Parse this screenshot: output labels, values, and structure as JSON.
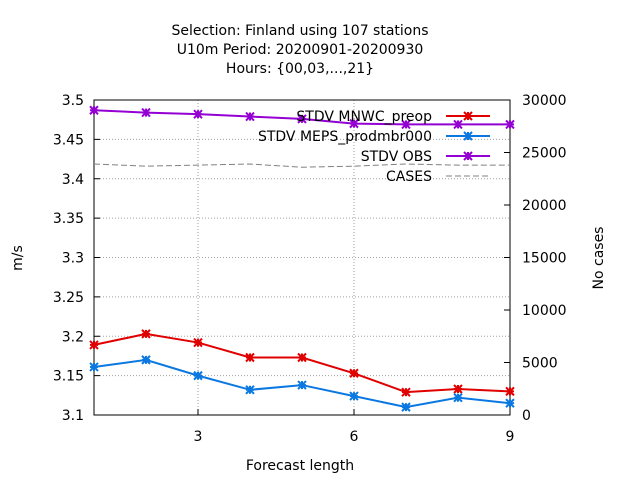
{
  "chart_data": {
    "type": "line",
    "title_lines": [
      "Selection: Finland using   107 stations",
      "U10m   Period: 20200901-20200930",
      "Hours: {00,03,...,21}"
    ],
    "xlabel": "Forecast length",
    "ylabel": "m/s",
    "y2label": "No cases",
    "x": [
      1,
      2,
      3,
      4,
      5,
      6,
      7,
      8,
      9
    ],
    "xlim": [
      1,
      9
    ],
    "xticks": [
      3,
      6,
      9
    ],
    "ylim": [
      3.1,
      3.5
    ],
    "yticks": [
      3.1,
      3.15,
      3.2,
      3.25,
      3.3,
      3.35,
      3.4,
      3.45,
      3.5
    ],
    "y2lim": [
      0,
      30000
    ],
    "y2ticks": [
      0,
      5000,
      10000,
      15000,
      20000,
      25000,
      30000
    ],
    "grid": true,
    "legend_position": "top-right",
    "series": [
      {
        "name": "STDV MNWC_preop",
        "color": "#e00000",
        "axis": "y",
        "marker": true,
        "dashed": false,
        "values": [
          3.189,
          3.203,
          3.192,
          3.173,
          3.173,
          3.153,
          3.129,
          3.133,
          3.13
        ]
      },
      {
        "name": "STDV MEPS_prodmbr000",
        "color": "#0a78e0",
        "axis": "y",
        "marker": true,
        "dashed": false,
        "values": [
          3.161,
          3.17,
          3.15,
          3.132,
          3.138,
          3.124,
          3.11,
          3.122,
          3.115
        ]
      },
      {
        "name": "STDV OBS",
        "color": "#9400d3",
        "axis": "y",
        "marker": true,
        "dashed": false,
        "values": [
          3.487,
          3.484,
          3.482,
          3.479,
          3.476,
          3.47,
          3.469,
          3.469,
          3.469
        ]
      },
      {
        "name": "CASES",
        "color": "#808080",
        "axis": "y2",
        "marker": false,
        "dashed": true,
        "values": [
          23900,
          23700,
          23800,
          23900,
          23600,
          23700,
          23900,
          23800,
          23800
        ]
      }
    ]
  }
}
